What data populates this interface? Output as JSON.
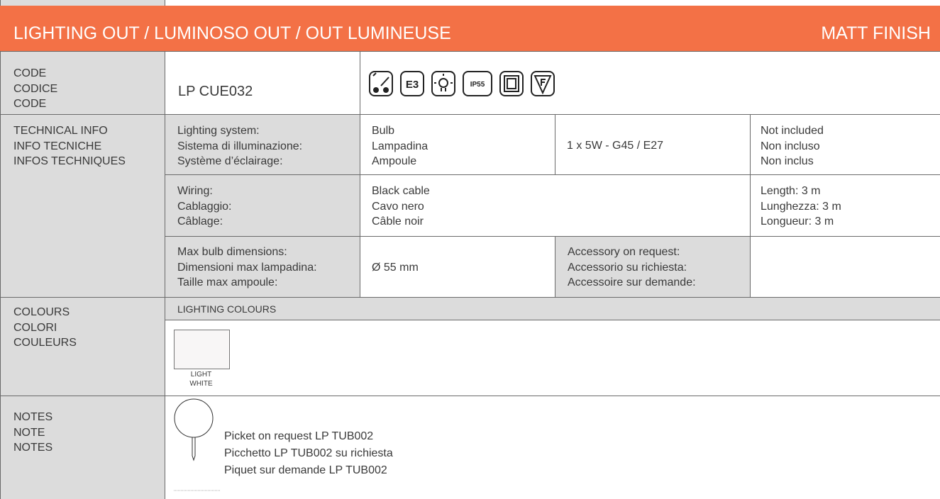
{
  "header": {
    "title": "LIGHTING OUT / LUMINOSO OUT / OUT LUMINEUSE",
    "finish": "MATT FINISH"
  },
  "code": {
    "label": [
      "CODE",
      "CODICE",
      "CODE"
    ],
    "value": "LP CUE032",
    "icons": [
      "E3",
      "IP55"
    ]
  },
  "technical": {
    "label": [
      "TECHNICAL INFO",
      "INFO TECNICHE",
      "INFOS TECHNIQUES"
    ],
    "rows": [
      {
        "label": [
          "Lighting system:",
          "Sistema di illuminazione:",
          "Système d’éclairage:"
        ],
        "value": [
          "Bulb",
          "Lampadina",
          "Ampoule"
        ],
        "spec": "1 x 5W - G45 / E27",
        "note": [
          "Not included",
          "Non incluso",
          "Non inclus"
        ]
      },
      {
        "label": [
          "Wiring:",
          "Cablaggio:",
          "Câblage:"
        ],
        "value": [
          "Black cable",
          "Cavo nero",
          "Câble noir"
        ],
        "note": [
          "Length: 3 m",
          "Lunghezza: 3 m",
          "Longueur: 3 m"
        ]
      },
      {
        "label": [
          "Max bulb dimensions:",
          "Dimensioni max lampadina:",
          "Taille max ampoule:"
        ],
        "value": "Ø 55 mm",
        "accessory": [
          "Accessory on request:",
          "Accessorio su richiesta:",
          "Accessoire sur demande:"
        ]
      }
    ]
  },
  "colours": {
    "label": [
      "COLOURS",
      "COLORI",
      "COULEURS"
    ],
    "heading": "LIGHTING COLOURS",
    "swatches": [
      {
        "name": [
          "LIGHT",
          "WHITE"
        ]
      }
    ]
  },
  "notes": {
    "label": [
      "NOTES",
      "NOTE",
      "NOTES"
    ],
    "text": [
      "Picket on request LP TUB002",
      "Picchetto LP TUB002 su richiesta",
      "Piquet sur demande LP TUB002"
    ]
  }
}
